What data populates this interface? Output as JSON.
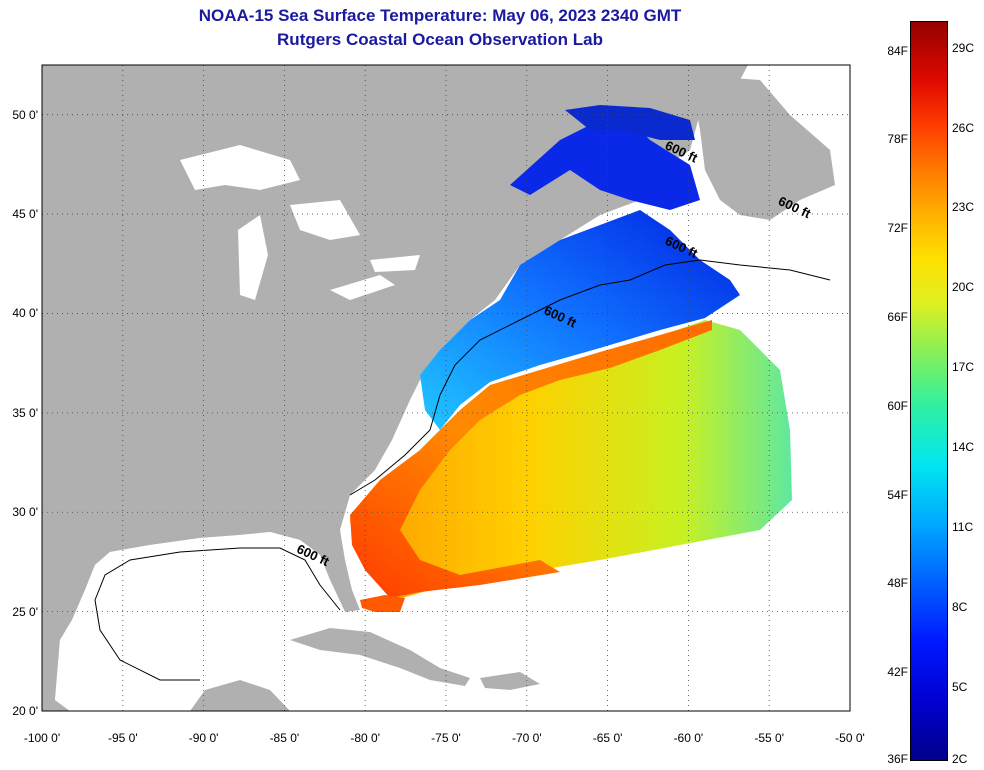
{
  "title": "NOAA-15 Sea Surface Temperature:  May 06, 2023 2340 GMT",
  "subtitle": "Rutgers Coastal Ocean Observation Lab",
  "map": {
    "lon_range": [
      -100,
      -50
    ],
    "lat_range": [
      20,
      52.5
    ],
    "grid": true,
    "lat_ticks": [
      {
        "lat": 50,
        "label": "50 0'"
      },
      {
        "lat": 45,
        "label": "45 0'"
      },
      {
        "lat": 40,
        "label": "40 0'"
      },
      {
        "lat": 35,
        "label": "35 0'"
      },
      {
        "lat": 30,
        "label": "30 0'"
      },
      {
        "lat": 25,
        "label": "25 0'"
      },
      {
        "lat": 20,
        "label": "20 0'"
      }
    ],
    "lon_ticks": [
      {
        "lon": -100,
        "label": "-100 0'"
      },
      {
        "lon": -95,
        "label": "-95 0'"
      },
      {
        "lon": -90,
        "label": "-90 0'"
      },
      {
        "lon": -85,
        "label": "-85 0'"
      },
      {
        "lon": -80,
        "label": "-80 0'"
      },
      {
        "lon": -75,
        "label": "-75 0'"
      },
      {
        "lon": -70,
        "label": "-70 0'"
      },
      {
        "lon": -65,
        "label": "-65 0'"
      },
      {
        "lon": -60,
        "label": "-60 0'"
      },
      {
        "lon": -55,
        "label": "-55 0'"
      },
      {
        "lon": -50,
        "label": "-50 0'"
      }
    ],
    "isobath_labels": [
      {
        "text": "600 ft",
        "lon": -61.5,
        "lat": 48.3
      },
      {
        "text": "600 ft",
        "lon": -54.5,
        "lat": 45.5
      },
      {
        "text": "600 ft",
        "lon": -61.5,
        "lat": 43.5
      },
      {
        "text": "600 ft",
        "lon": -69,
        "lat": 40.0
      },
      {
        "text": "600 ft",
        "lon": -84.3,
        "lat": 28.0
      }
    ],
    "colors": {
      "land": "#b0b0b0",
      "water_nodata": "#ffffff",
      "grid": "#444444"
    }
  },
  "colorbar": {
    "min_f": 36,
    "max_f": 86,
    "f_labels": [
      {
        "value": 84,
        "label": "84F"
      },
      {
        "value": 78,
        "label": "78F"
      },
      {
        "value": 72,
        "label": "72F"
      },
      {
        "value": 66,
        "label": "66F"
      },
      {
        "value": 60,
        "label": "60F"
      },
      {
        "value": 54,
        "label": "54F"
      },
      {
        "value": 48,
        "label": "48F"
      },
      {
        "value": 42,
        "label": "42F"
      },
      {
        "value": 36,
        "label": "36F"
      }
    ],
    "c_labels": [
      {
        "value": 29,
        "label": "29C"
      },
      {
        "value": 26,
        "label": "26C"
      },
      {
        "value": 23,
        "label": "23C"
      },
      {
        "value": 20,
        "label": "20C"
      },
      {
        "value": 17,
        "label": "17C"
      },
      {
        "value": 14,
        "label": "14C"
      },
      {
        "value": 11,
        "label": "11C"
      },
      {
        "value": 8,
        "label": "8C"
      },
      {
        "value": 5,
        "label": "5C"
      },
      {
        "value": 2,
        "label": "2C"
      }
    ]
  }
}
